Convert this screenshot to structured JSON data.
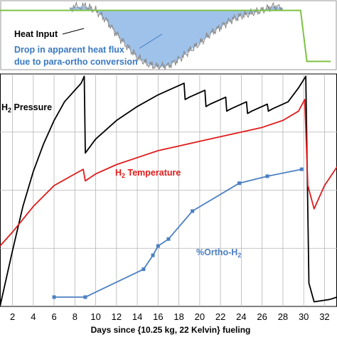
{
  "chart_data": [
    {
      "panel": "top",
      "type": "line",
      "series": [
        {
          "name": "Heat Input",
          "color": "#7dc243",
          "x": [
            -0.5,
            3,
            8.5,
            16,
            22,
            28,
            29.7,
            30.3,
            32.6
          ],
          "y": [
            0.86,
            0.86,
            0.86,
            0.86,
            0.86,
            0.86,
            0.86,
            0.12,
            0.12
          ],
          "step_after_x": [
            8.5,
            28,
            30.3
          ]
        },
        {
          "name": "",
          "color": "#8a8a8a",
          "x": [
            7.5,
            9,
            10,
            11,
            12,
            13,
            14,
            15,
            16,
            17,
            18,
            19,
            20,
            21,
            22,
            23,
            24,
            25,
            26,
            27,
            28
          ],
          "y": [
            0.9,
            0.92,
            0.86,
            0.72,
            0.52,
            0.34,
            0.18,
            0.08,
            0.04,
            0.06,
            0.15,
            0.27,
            0.38,
            0.52,
            0.62,
            0.72,
            0.78,
            0.82,
            0.86,
            0.92,
            0.9
          ]
        }
      ],
      "annotations": {
        "heat_input": "Heat Input",
        "drop_line1": "Drop in apparent heat flux",
        "drop_line2": "due to para-ortho conversion"
      }
    },
    {
      "panel": "bottom",
      "type": "line",
      "xlabel": "Days since {10.25 kg, 22 Kelvin} fueling",
      "xlim": [
        0.8,
        33.2
      ],
      "x_ticks": [
        2,
        4,
        6,
        8,
        10,
        12,
        14,
        16,
        18,
        20,
        22,
        24,
        26,
        28,
        30,
        32
      ],
      "grid": true,
      "series": [
        {
          "name": "H₂ Pressure",
          "label_main": "H",
          "label_sub": "2",
          "label_rest": " Pressure",
          "color": "#000000",
          "x": [
            0.8,
            2,
            3,
            4,
            5,
            6,
            7,
            8,
            8.6,
            8.9,
            9.0,
            10,
            12,
            14,
            16,
            17.5,
            18.5,
            18.6,
            19,
            20.5,
            20.6,
            21,
            22.5,
            22.6,
            23,
            24.5,
            24.6,
            25,
            26.5,
            26.6,
            27,
            28.5,
            29.5,
            30.2,
            30.5,
            31,
            32.5,
            33.2
          ],
          "y": [
            0.0,
            0.24,
            0.43,
            0.58,
            0.7,
            0.8,
            0.88,
            0.93,
            0.96,
            0.99,
            0.66,
            0.72,
            0.8,
            0.86,
            0.91,
            0.94,
            0.96,
            0.89,
            0.9,
            0.93,
            0.86,
            0.87,
            0.9,
            0.84,
            0.85,
            0.88,
            0.83,
            0.84,
            0.87,
            0.84,
            0.85,
            0.88,
            0.94,
            0.99,
            0.1,
            0.02,
            0.03,
            0.04
          ]
        },
        {
          "name": "H₂ Temperature",
          "label_main": "H",
          "label_sub": "2",
          "label_rest": " Temperature",
          "color": "#e01b1b",
          "x": [
            0.8,
            2,
            4,
            6,
            8,
            8.8,
            9.0,
            10,
            12,
            14,
            16,
            18,
            20,
            22,
            24,
            26,
            28,
            29.5,
            30.1,
            30.4,
            31,
            32,
            33.2
          ],
          "y": [
            0.26,
            0.32,
            0.43,
            0.52,
            0.57,
            0.59,
            0.54,
            0.57,
            0.61,
            0.64,
            0.67,
            0.69,
            0.71,
            0.73,
            0.75,
            0.77,
            0.8,
            0.84,
            0.89,
            0.52,
            0.42,
            0.52,
            0.6
          ]
        },
        {
          "name": "%Ortho-H₂",
          "label_main": "%Ortho-H",
          "label_sub": "2",
          "label_rest": "",
          "color": "#4c7fc2",
          "x": [
            6,
            9,
            14.6,
            15.5,
            16,
            17,
            19.3,
            23.8,
            26.5,
            29.8
          ],
          "y": [
            0.04,
            0.04,
            0.16,
            0.22,
            0.26,
            0.29,
            0.41,
            0.53,
            0.56,
            0.59
          ]
        }
      ]
    }
  ]
}
